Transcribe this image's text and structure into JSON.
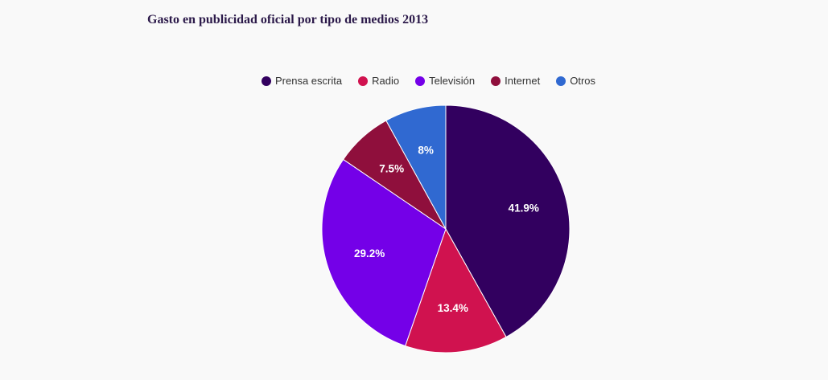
{
  "chart_data": {
    "type": "pie",
    "title": "Gasto en publicidad oficial por tipo de medios 2013",
    "legend_placement": "top",
    "slices": [
      {
        "name": "Prensa escrita",
        "value": 41.9,
        "label": "41.9%",
        "color": "#32005f"
      },
      {
        "name": "Radio",
        "value": 13.4,
        "label": "13.4%",
        "color": "#d0124f"
      },
      {
        "name": "Televisión",
        "value": 29.2,
        "label": "29.2%",
        "color": "#7400e8"
      },
      {
        "name": "Internet",
        "value": 7.5,
        "label": "7.5%",
        "color": "#8f0f3c"
      },
      {
        "name": "Otros",
        "value": 8,
        "label": "8%",
        "color": "#3069d1"
      }
    ]
  }
}
